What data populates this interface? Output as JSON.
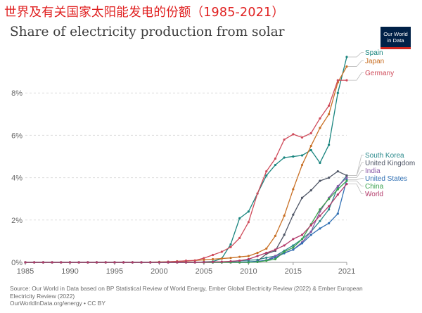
{
  "banner": "世界及有关国家太阳能发电的份额（1985-2021）",
  "subtitle": "Share of electricity production from solar",
  "logo": {
    "line1": "Our World",
    "line2": "in Data"
  },
  "source": {
    "line1": "Source: Our World in Data based on BP Statistical Review of World Energy, Ember Global Electricity Review (2022) & Ember European",
    "line2": "Electricity Review (2022)",
    "line3": "OurWorldInData.org/energy • CC BY"
  },
  "chart_data": {
    "type": "line",
    "x": [
      1985,
      1986,
      1987,
      1988,
      1989,
      1990,
      1991,
      1992,
      1993,
      1994,
      1995,
      1996,
      1997,
      1998,
      1999,
      2000,
      2001,
      2002,
      2003,
      2004,
      2005,
      2006,
      2007,
      2008,
      2009,
      2010,
      2011,
      2012,
      2013,
      2014,
      2015,
      2016,
      2017,
      2018,
      2019,
      2020,
      2021
    ],
    "xlim": [
      1985,
      2021
    ],
    "ylim": [
      0,
      10
    ],
    "x_ticks": [
      "1985",
      "1990",
      "1995",
      "2000",
      "2005",
      "2010",
      "2015",
      "2021"
    ],
    "y_ticks": [
      {
        "value": 0,
        "label": "0%"
      },
      {
        "value": 2,
        "label": "2%"
      },
      {
        "value": 4,
        "label": "4%"
      },
      {
        "value": 6,
        "label": "6%"
      },
      {
        "value": 8,
        "label": "8%"
      }
    ],
    "grid": true,
    "series": [
      {
        "name": "Spain",
        "color": "#18847e",
        "values": [
          0,
          0,
          0,
          0,
          0,
          0,
          0,
          0,
          0,
          0,
          0,
          0,
          0,
          0,
          0,
          0,
          0,
          0,
          0,
          0,
          0.02,
          0.04,
          0.18,
          0.85,
          2.08,
          2.4,
          3.25,
          4.1,
          4.6,
          4.95,
          5.0,
          5.05,
          5.3,
          4.7,
          5.55,
          8.0,
          9.7
        ]
      },
      {
        "name": "Japan",
        "color": "#c86f24",
        "values": [
          0,
          0,
          0,
          0,
          0,
          0,
          0,
          0,
          0,
          0,
          0,
          0,
          0,
          0,
          0.01,
          0.02,
          0.03,
          0.05,
          0.06,
          0.09,
          0.12,
          0.15,
          0.18,
          0.21,
          0.26,
          0.3,
          0.45,
          0.65,
          1.25,
          2.2,
          3.45,
          4.6,
          5.5,
          6.35,
          7.0,
          8.5,
          9.25
        ]
      },
      {
        "name": "Germany",
        "color": "#cf4b5a",
        "values": [
          0,
          0,
          0,
          0,
          0,
          0,
          0,
          0,
          0,
          0,
          0,
          0,
          0,
          0,
          0,
          0,
          0.03,
          0.04,
          0.08,
          0.09,
          0.2,
          0.35,
          0.5,
          0.72,
          1.15,
          1.9,
          3.25,
          4.3,
          4.9,
          5.8,
          6.05,
          5.9,
          6.1,
          6.8,
          7.4,
          8.6,
          8.6
        ]
      },
      {
        "name": "South Korea",
        "color": "#2b8a8c",
        "values": [
          0,
          0,
          0,
          0,
          0,
          0,
          0,
          0,
          0,
          0,
          0,
          0,
          0,
          0,
          0,
          0,
          0,
          0,
          0,
          0,
          0,
          0,
          0,
          0.04,
          0.08,
          0.1,
          0.12,
          0.22,
          0.3,
          0.55,
          0.8,
          1.1,
          1.45,
          1.95,
          2.5,
          3.55,
          4.1
        ]
      },
      {
        "name": "United Kingdom",
        "color": "#4f5666",
        "values": [
          0,
          0,
          0,
          0,
          0,
          0,
          0,
          0,
          0,
          0,
          0,
          0,
          0,
          0,
          0,
          0,
          0,
          0,
          0,
          0,
          0,
          0,
          0,
          0,
          0,
          0,
          0.06,
          0.4,
          0.55,
          1.3,
          2.25,
          3.05,
          3.4,
          3.85,
          4.0,
          4.3,
          4.1
        ]
      },
      {
        "name": "India",
        "color": "#8a5aa7",
        "values": [
          0,
          0,
          0,
          0,
          0,
          0,
          0,
          0,
          0,
          0,
          0,
          0,
          0,
          0,
          0,
          0,
          0,
          0,
          0,
          0,
          0,
          0,
          0,
          0,
          0,
          0,
          0.02,
          0.1,
          0.3,
          0.45,
          0.6,
          0.95,
          1.45,
          2.4,
          3.05,
          3.6,
          4.0
        ]
      },
      {
        "name": "United States",
        "color": "#2f6fb3",
        "values": [
          0,
          0,
          0,
          0,
          0,
          0,
          0,
          0,
          0,
          0,
          0,
          0,
          0,
          0,
          0,
          0,
          0,
          0,
          0,
          0,
          0.01,
          0.01,
          0.02,
          0.02,
          0.02,
          0.03,
          0.05,
          0.1,
          0.23,
          0.43,
          0.6,
          0.9,
          1.3,
          1.6,
          1.85,
          2.3,
          3.9
        ]
      },
      {
        "name": "China",
        "color": "#3aa14e",
        "values": [
          0,
          0,
          0,
          0,
          0,
          0,
          0,
          0,
          0,
          0,
          0,
          0,
          0,
          0,
          0,
          0,
          0,
          0,
          0,
          0,
          0,
          0,
          0,
          0,
          0,
          0,
          0.02,
          0.08,
          0.15,
          0.5,
          0.7,
          1.1,
          1.8,
          2.5,
          3.0,
          3.45,
          3.85
        ]
      },
      {
        "name": "World",
        "color": "#b23a6a",
        "values": [
          0,
          0,
          0,
          0,
          0,
          0,
          0,
          0,
          0,
          0,
          0,
          0,
          0,
          0,
          0,
          0,
          0,
          0,
          0,
          0,
          0.01,
          0.02,
          0.03,
          0.05,
          0.08,
          0.15,
          0.3,
          0.45,
          0.6,
          0.8,
          1.1,
          1.3,
          1.75,
          2.2,
          2.65,
          3.2,
          3.7
        ]
      }
    ]
  }
}
